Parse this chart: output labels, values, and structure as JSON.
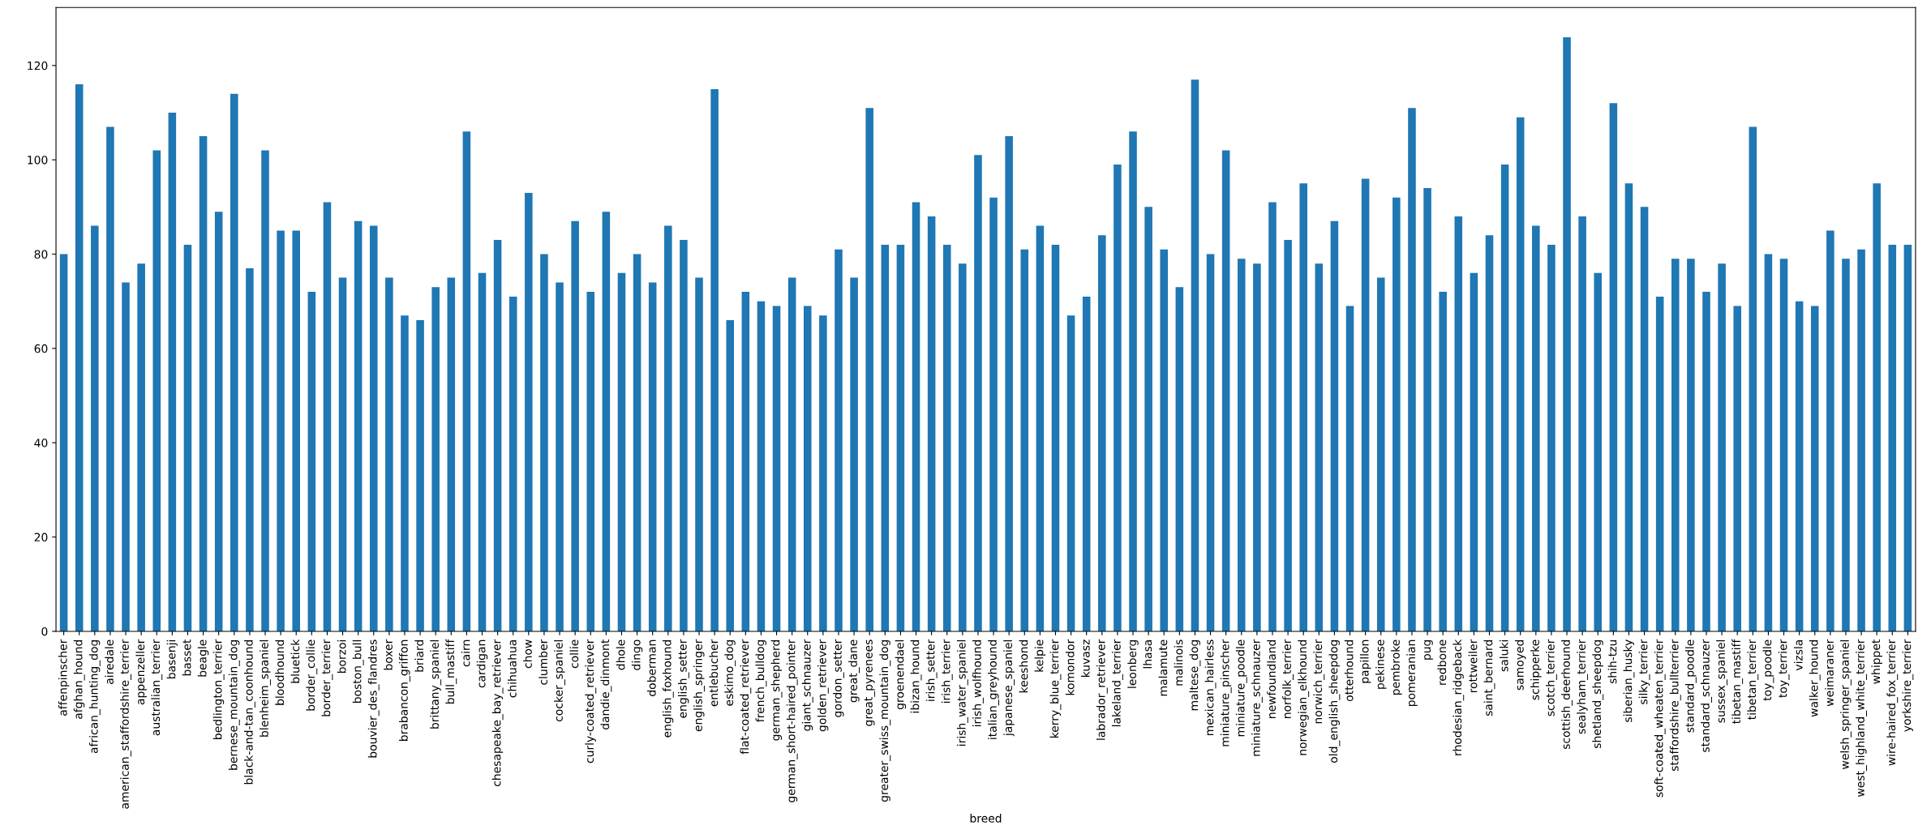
{
  "chart_data": {
    "type": "bar",
    "xlabel": "breed",
    "color": "#1f77b4",
    "ylim": [
      0,
      132.3
    ],
    "yticks": [
      0,
      20,
      40,
      60,
      80,
      100,
      120
    ],
    "categories": [
      "affenpinscher",
      "afghan_hound",
      "african_hunting_dog",
      "airedale",
      "american_staffordshire_terrier",
      "appenzeller",
      "australian_terrier",
      "basenji",
      "basset",
      "beagle",
      "bedlington_terrier",
      "bernese_mountain_dog",
      "black-and-tan_coonhound",
      "blenheim_spaniel",
      "bloodhound",
      "bluetick",
      "border_collie",
      "border_terrier",
      "borzoi",
      "boston_bull",
      "bouvier_des_flandres",
      "boxer",
      "brabancon_griffon",
      "briard",
      "brittany_spaniel",
      "bull_mastiff",
      "cairn",
      "cardigan",
      "chesapeake_bay_retriever",
      "chihuahua",
      "chow",
      "clumber",
      "cocker_spaniel",
      "collie",
      "curly-coated_retriever",
      "dandie_dinmont",
      "dhole",
      "dingo",
      "doberman",
      "english_foxhound",
      "english_setter",
      "english_springer",
      "entlebucher",
      "eskimo_dog",
      "flat-coated_retriever",
      "french_bulldog",
      "german_shepherd",
      "german_short-haired_pointer",
      "giant_schnauzer",
      "golden_retriever",
      "gordon_setter",
      "great_dane",
      "great_pyrenees",
      "greater_swiss_mountain_dog",
      "groenendael",
      "ibizan_hound",
      "irish_setter",
      "irish_terrier",
      "irish_water_spaniel",
      "irish_wolfhound",
      "italian_greyhound",
      "japanese_spaniel",
      "keeshond",
      "kelpie",
      "kerry_blue_terrier",
      "komondor",
      "kuvasz",
      "labrador_retriever",
      "lakeland_terrier",
      "leonberg",
      "lhasa",
      "malamute",
      "malinois",
      "maltese_dog",
      "mexican_hairless",
      "miniature_pinscher",
      "miniature_poodle",
      "miniature_schnauzer",
      "newfoundland",
      "norfolk_terrier",
      "norwegian_elkhound",
      "norwich_terrier",
      "old_english_sheepdog",
      "otterhound",
      "papillon",
      "pekinese",
      "pembroke",
      "pomeranian",
      "pug",
      "redbone",
      "rhodesian_ridgeback",
      "rottweiler",
      "saint_bernard",
      "saluki",
      "samoyed",
      "schipperke",
      "scotch_terrier",
      "scottish_deerhound",
      "sealyham_terrier",
      "shetland_sheepdog",
      "shih-tzu",
      "siberian_husky",
      "silky_terrier",
      "soft-coated_wheaten_terrier",
      "staffordshire_bullterrier",
      "standard_poodle",
      "standard_schnauzer",
      "sussex_spaniel",
      "tibetan_mastiff",
      "tibetan_terrier",
      "toy_poodle",
      "toy_terrier",
      "vizsla",
      "walker_hound",
      "weimaraner",
      "welsh_springer_spaniel",
      "west_highland_white_terrier",
      "whippet",
      "wire-haired_fox_terrier",
      "yorkshire_terrier"
    ],
    "values": [
      80,
      116,
      86,
      107,
      74,
      78,
      102,
      110,
      82,
      105,
      89,
      114,
      77,
      102,
      85,
      85,
      72,
      91,
      75,
      87,
      86,
      75,
      67,
      66,
      73,
      75,
      106,
      76,
      83,
      71,
      93,
      80,
      74,
      87,
      72,
      89,
      76,
      80,
      74,
      86,
      83,
      75,
      115,
      66,
      72,
      70,
      69,
      75,
      69,
      67,
      81,
      75,
      111,
      82,
      82,
      91,
      88,
      82,
      78,
      101,
      92,
      105,
      81,
      86,
      82,
      67,
      71,
      84,
      99,
      106,
      90,
      81,
      73,
      117,
      80,
      102,
      79,
      78,
      91,
      83,
      95,
      78,
      87,
      69,
      96,
      75,
      92,
      111,
      94,
      72,
      88,
      76,
      84,
      99,
      109,
      86,
      82,
      126,
      88,
      76,
      112,
      95,
      90,
      71,
      79,
      79,
      72,
      78,
      69,
      107,
      80,
      79,
      70,
      69,
      85,
      79,
      81,
      95,
      82,
      82
    ]
  }
}
